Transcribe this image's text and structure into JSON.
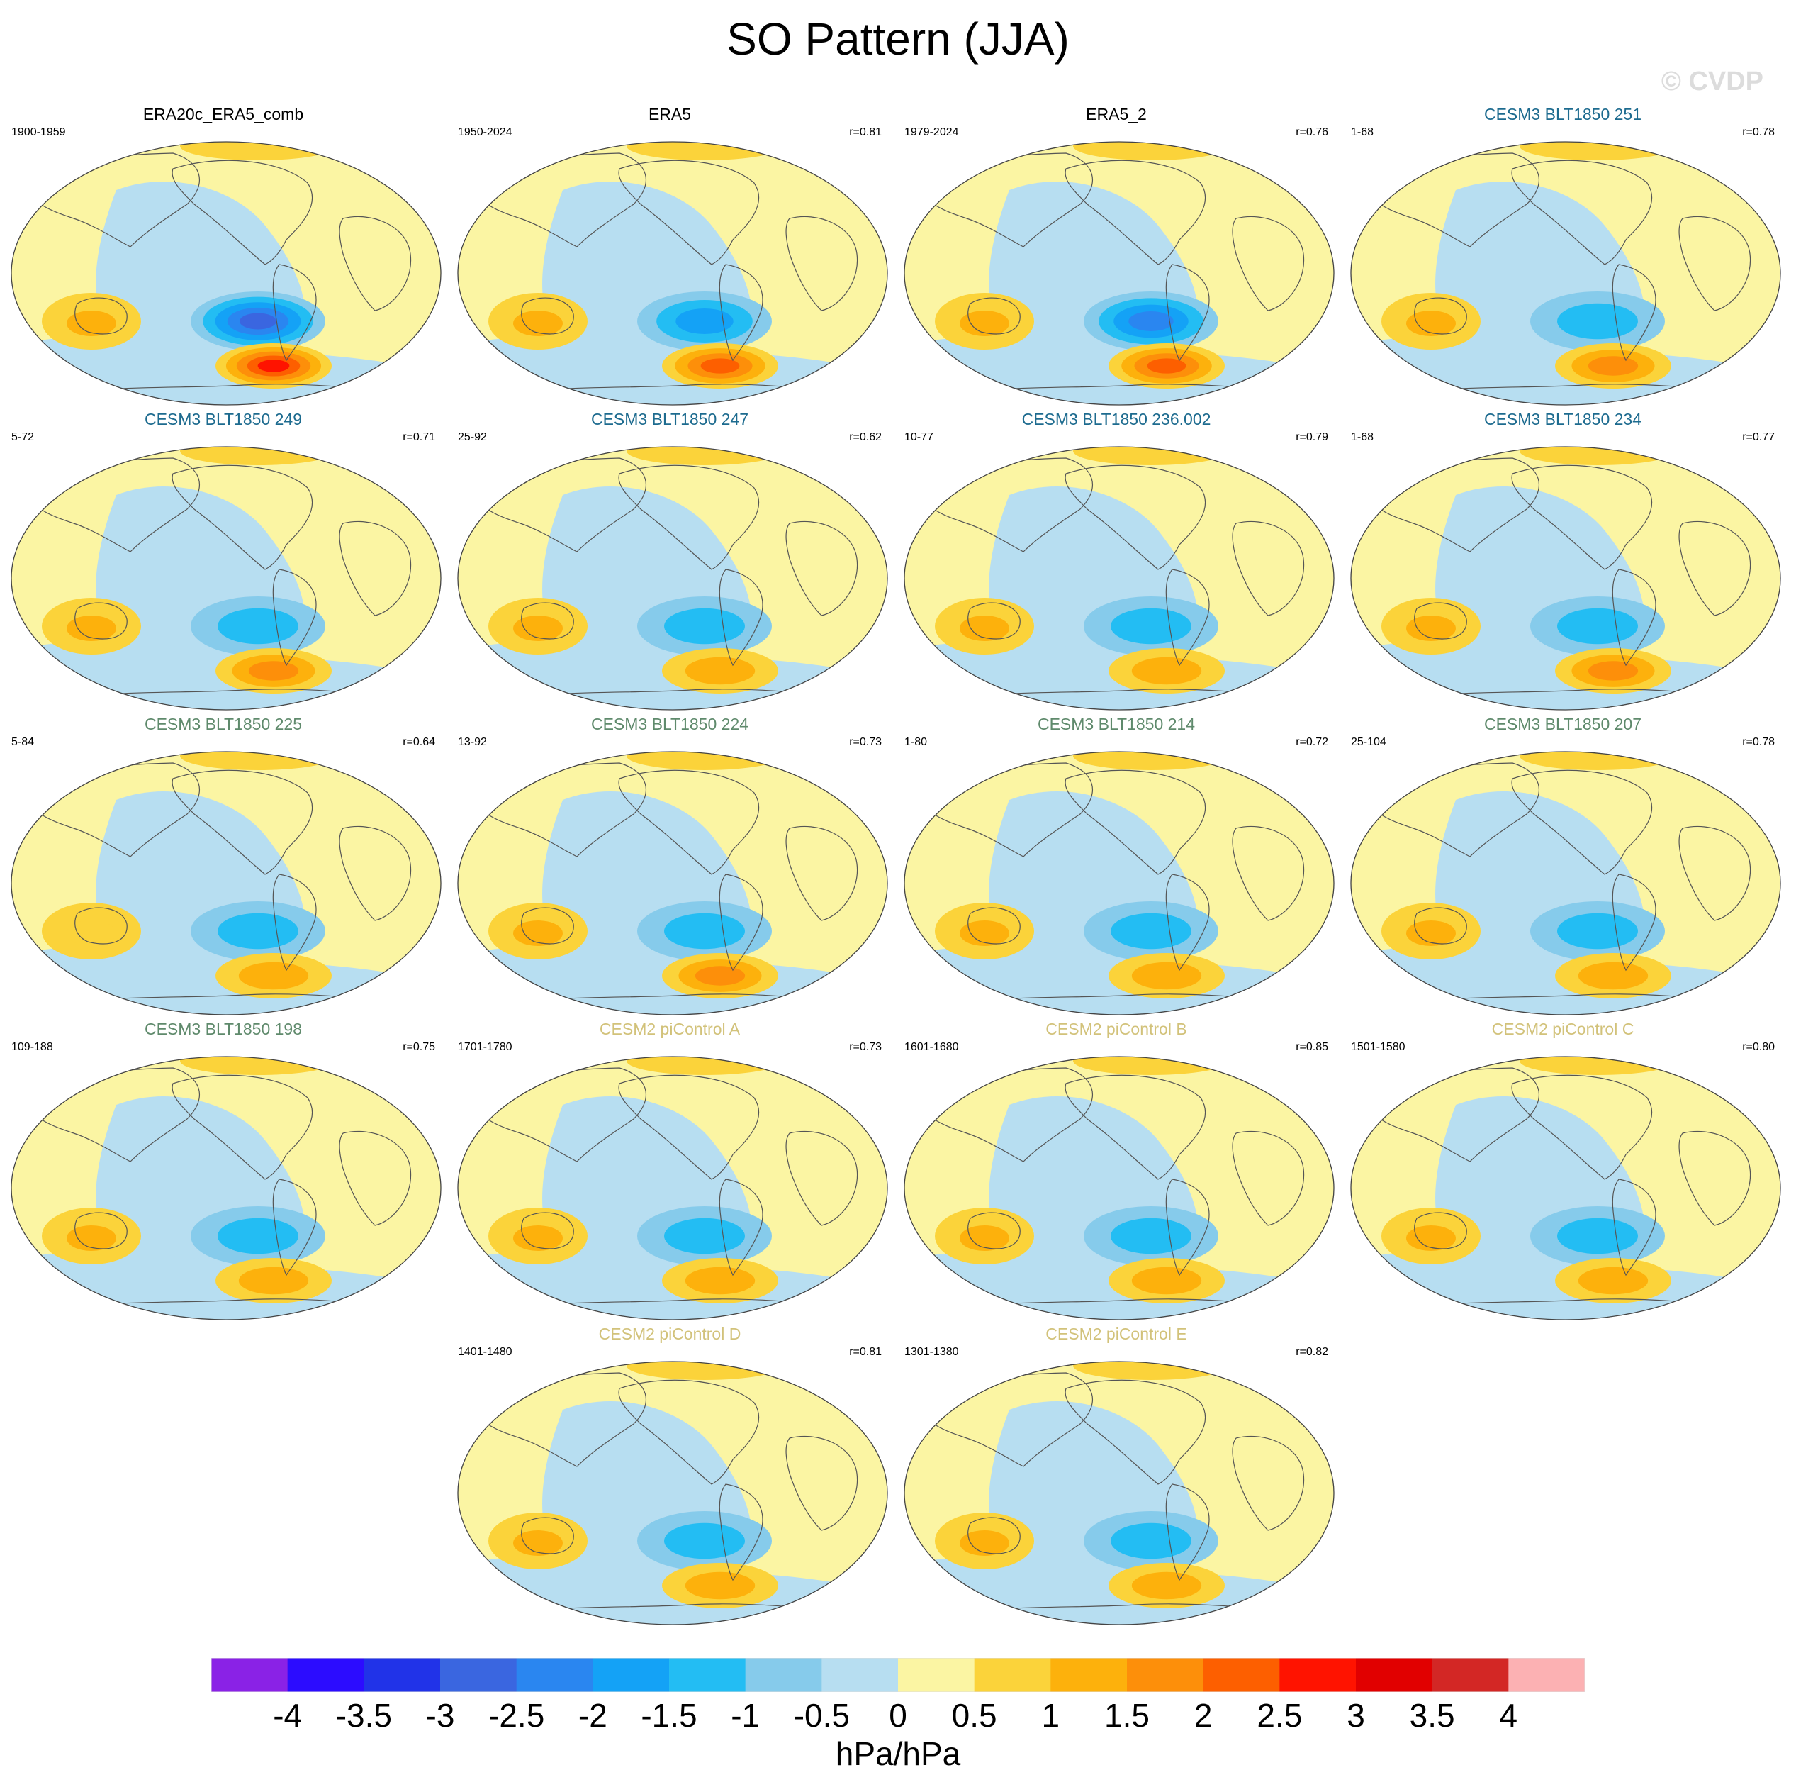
{
  "title": "SO Pattern (JJA)",
  "watermark": "© CVDP",
  "units": "hPa/hPa",
  "colorbar": {
    "labels": [
      "-4",
      "-3.5",
      "-3",
      "-2.5",
      "-2",
      "-1.5",
      "-1",
      "-0.5",
      "0",
      "0.5",
      "1",
      "1.5",
      "2",
      "2.5",
      "3",
      "3.5",
      "4"
    ],
    "colors": [
      "#8a22e6",
      "#2c0cff",
      "#2133e8",
      "#3a66e0",
      "#2a86f0",
      "#14a2f6",
      "#23bdf3",
      "#86cbeb",
      "#b7def1",
      "#fbf5a3",
      "#fbd33a",
      "#fdb10c",
      "#fd8f0a",
      "#fd5f00",
      "#ff1300",
      "#e10000",
      "#d32725",
      "#fcb1b3"
    ]
  },
  "panels": [
    {
      "title": "ERA20c_ERA5_comb",
      "period": "1900-1959",
      "corr": "",
      "group": "obs",
      "neg": 2.8,
      "pos": 2.7
    },
    {
      "title": "ERA5",
      "period": "1950-2024",
      "corr": "r=0.81",
      "group": "obs",
      "neg": 1.9,
      "pos": 2.2
    },
    {
      "title": "ERA5_2",
      "period": "1979-2024",
      "corr": "r=0.76",
      "group": "obs",
      "neg": 2.3,
      "pos": 2.3
    },
    {
      "title": "CESM3 BLT1850 251",
      "period": "1-68",
      "corr": "r=0.78",
      "group": "blue",
      "neg": 1.6,
      "pos": 1.8
    },
    {
      "title": "CESM3 BLT1850 249",
      "period": "5-72",
      "corr": "r=0.71",
      "group": "blue",
      "neg": 1.6,
      "pos": 1.7
    },
    {
      "title": "CESM3 BLT1850 247",
      "period": "25-92",
      "corr": "r=0.62",
      "group": "blue",
      "neg": 1.4,
      "pos": 1.3
    },
    {
      "title": "CESM3 BLT1850 236.002",
      "period": "10-77",
      "corr": "r=0.79",
      "group": "blue",
      "neg": 1.6,
      "pos": 1.3
    },
    {
      "title": "CESM3 BLT1850 234",
      "period": "1-68",
      "corr": "r=0.77",
      "group": "blue",
      "neg": 1.5,
      "pos": 1.8
    },
    {
      "title": "CESM3 BLT1850 225",
      "period": "5-84",
      "corr": "r=0.64",
      "group": "green",
      "neg": 1.6,
      "pos": 1.2
    },
    {
      "title": "CESM3 BLT1850 224",
      "period": "13-92",
      "corr": "r=0.73",
      "group": "green",
      "neg": 1.6,
      "pos": 1.7
    },
    {
      "title": "CESM3 BLT1850 214",
      "period": "1-80",
      "corr": "r=0.72",
      "group": "green",
      "neg": 1.6,
      "pos": 1.5
    },
    {
      "title": "CESM3 BLT1850 207",
      "period": "25-104",
      "corr": "r=0.78",
      "group": "green",
      "neg": 1.6,
      "pos": 1.4
    },
    {
      "title": "CESM3 BLT1850 198",
      "period": "109-188",
      "corr": "r=0.75",
      "group": "green",
      "neg": 1.6,
      "pos": 1.5
    },
    {
      "title": "CESM2 piControl A",
      "period": "1701-1780",
      "corr": "r=0.73",
      "group": "tan",
      "neg": 1.6,
      "pos": 1.6
    },
    {
      "title": "CESM2 piControl B",
      "period": "1601-1680",
      "corr": "r=0.85",
      "group": "tan",
      "neg": 1.6,
      "pos": 1.6
    },
    {
      "title": "CESM2 piControl C",
      "period": "1501-1580",
      "corr": "r=0.80",
      "group": "tan",
      "neg": 1.5,
      "pos": 1.4
    },
    {
      "title": "CESM2 piControl D",
      "period": "1401-1480",
      "corr": "r=0.81",
      "group": "tan",
      "neg": 1.6,
      "pos": 1.3
    },
    {
      "title": "CESM2 piControl E",
      "period": "1301-1380",
      "corr": "r=0.82",
      "group": "tan",
      "neg": 1.6,
      "pos": 1.5
    }
  ]
}
